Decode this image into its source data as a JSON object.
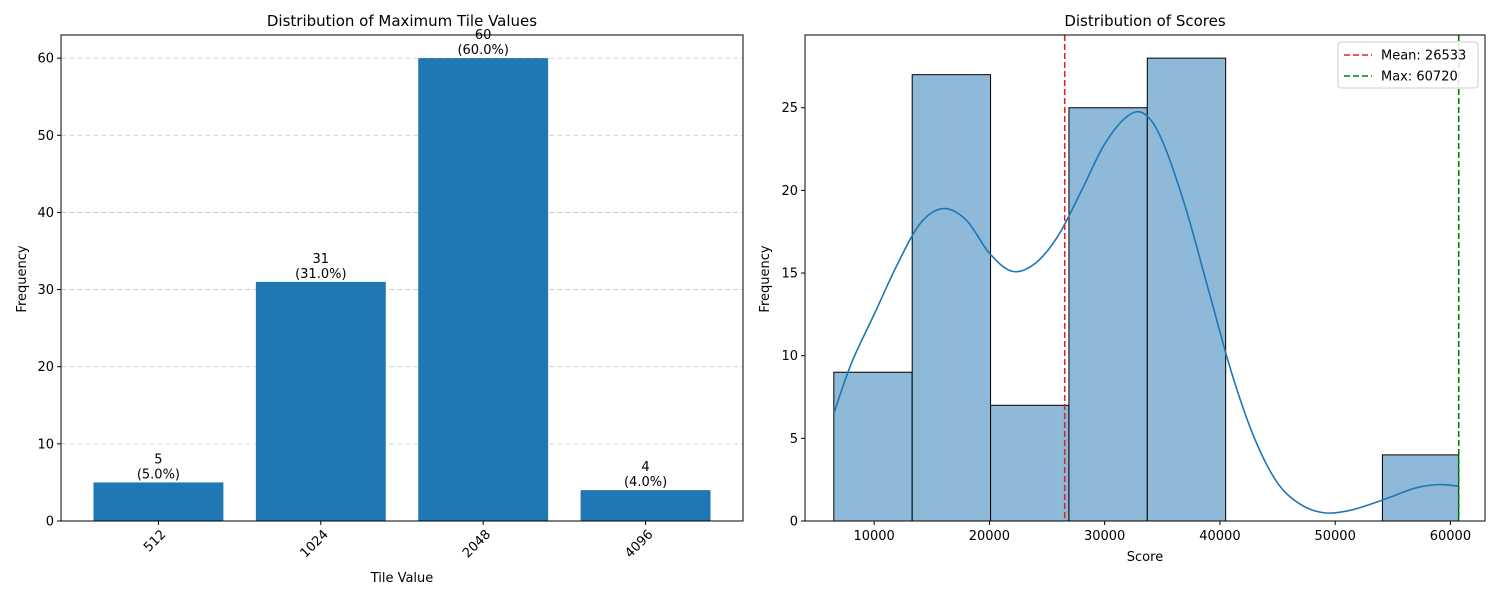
{
  "chart_data": [
    {
      "type": "bar",
      "title": "Distribution of Maximum Tile Values",
      "xlabel": "Tile Value",
      "ylabel": "Frequency",
      "categories": [
        "512",
        "1024",
        "2048",
        "4096"
      ],
      "values": [
        5,
        31,
        60,
        4
      ],
      "data_labels": [
        [
          "5",
          "(5.0%)"
        ],
        [
          "31",
          "(31.0%)"
        ],
        [
          "60",
          "(60.0%)"
        ],
        [
          "4",
          "(4.0%)"
        ]
      ],
      "ylim": [
        0,
        63
      ],
      "yticks": [
        0,
        10,
        20,
        30,
        40,
        50,
        60
      ],
      "grid": "y, dashed",
      "color": "#1f77b4",
      "xtick_rotation_deg": 45
    },
    {
      "type": "histogram",
      "title": "Distribution of Scores",
      "xlabel": "Score",
      "ylabel": "Frequency",
      "bins": [
        {
          "x0": 6500,
          "x1": 13300,
          "count": 9
        },
        {
          "x0": 13300,
          "x1": 20100,
          "count": 27
        },
        {
          "x0": 20100,
          "x1": 26900,
          "count": 7
        },
        {
          "x0": 26900,
          "x1": 33700,
          "count": 25
        },
        {
          "x0": 33700,
          "x1": 40500,
          "count": 28
        },
        {
          "x0": 40500,
          "x1": 47300,
          "count": 0
        },
        {
          "x0": 47300,
          "x1": 54100,
          "count": 0
        },
        {
          "x0": 54100,
          "x1": 60720,
          "count": 4
        }
      ],
      "kde": [
        [
          6500,
          6.5
        ],
        [
          8000,
          9.5
        ],
        [
          10000,
          12.5
        ],
        [
          12000,
          15.5
        ],
        [
          14000,
          18
        ],
        [
          16000,
          18.9
        ],
        [
          18000,
          18.2
        ],
        [
          20000,
          16.2
        ],
        [
          22000,
          15.1
        ],
        [
          24000,
          15.6
        ],
        [
          26000,
          17.3
        ],
        [
          28000,
          20
        ],
        [
          30000,
          22.8
        ],
        [
          32000,
          24.5
        ],
        [
          33500,
          24.6
        ],
        [
          35000,
          23
        ],
        [
          37000,
          19
        ],
        [
          39000,
          14
        ],
        [
          41000,
          9
        ],
        [
          43000,
          5
        ],
        [
          45000,
          2.3
        ],
        [
          47000,
          1
        ],
        [
          49000,
          0.5
        ],
        [
          51000,
          0.6
        ],
        [
          53000,
          1
        ],
        [
          55000,
          1.5
        ],
        [
          57000,
          2
        ],
        [
          59000,
          2.2
        ],
        [
          60720,
          2.1
        ]
      ],
      "xlim": [
        4000,
        63000
      ],
      "ylim": [
        0,
        29.4
      ],
      "xticks": [
        10000,
        20000,
        30000,
        40000,
        50000,
        60000
      ],
      "yticks": [
        0,
        5,
        10,
        15,
        20,
        25
      ],
      "vlines": [
        {
          "label": "Mean: 26533",
          "x": 26533,
          "color": "#d62728"
        },
        {
          "label": "Max: 60720",
          "x": 60720,
          "color": "#008000"
        }
      ],
      "legend_position": "top-right",
      "bar_color": "#8fb9d9",
      "kde_color": "#1f77b4"
    }
  ]
}
